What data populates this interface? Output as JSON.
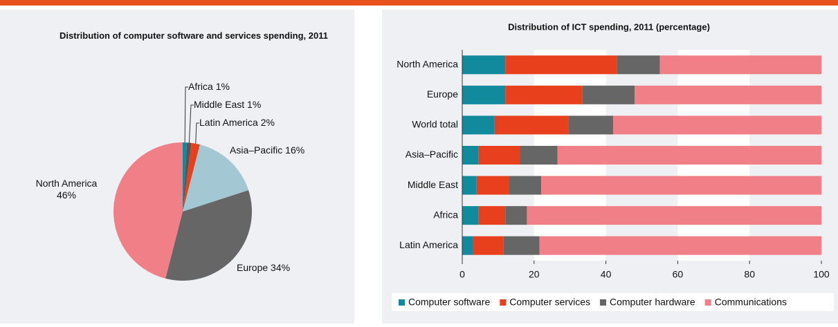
{
  "chart_data": [
    {
      "type": "pie",
      "title": "Distribution of computer software and services spending, 2011",
      "categories": [
        "Africa",
        "Middle East",
        "Latin America",
        "Asia–Pacific",
        "Europe",
        "North America"
      ],
      "values": [
        1,
        1,
        2,
        16,
        34,
        46
      ],
      "value_labels": [
        "1%",
        "1%",
        "2%",
        "16%",
        "34%",
        "46%"
      ],
      "colors": [
        "#108a9c",
        "#555555",
        "#e8401c",
        "#a3c7d3",
        "#666666",
        "#f07f88"
      ]
    },
    {
      "type": "stacked_bar_horizontal",
      "title": "Distribution of ICT spending, 2011 (percentage)",
      "categories": [
        "North America",
        "Europe",
        "World total",
        "Asia–Pacific",
        "Middle East",
        "Africa",
        "Latin America"
      ],
      "series": [
        {
          "name": "Computer software",
          "color": "#108a9c",
          "values": [
            12,
            12,
            9,
            4.5,
            4,
            4.5,
            3
          ]
        },
        {
          "name": "Computer services",
          "color": "#e8401c",
          "values": [
            31,
            21.5,
            20.5,
            11.5,
            9,
            7.5,
            8.5
          ]
        },
        {
          "name": "Computer hardware",
          "color": "#666666",
          "values": [
            12,
            14.5,
            12.5,
            10.5,
            9,
            6,
            10
          ]
        },
        {
          "name": "Communications",
          "color": "#f07f88",
          "values": [
            45,
            52,
            58,
            73.5,
            78,
            82,
            78.5
          ]
        }
      ],
      "xlim": [
        0,
        100
      ],
      "xticks": [
        0,
        20,
        40,
        60,
        80,
        100
      ],
      "legend": "bottom"
    }
  ]
}
